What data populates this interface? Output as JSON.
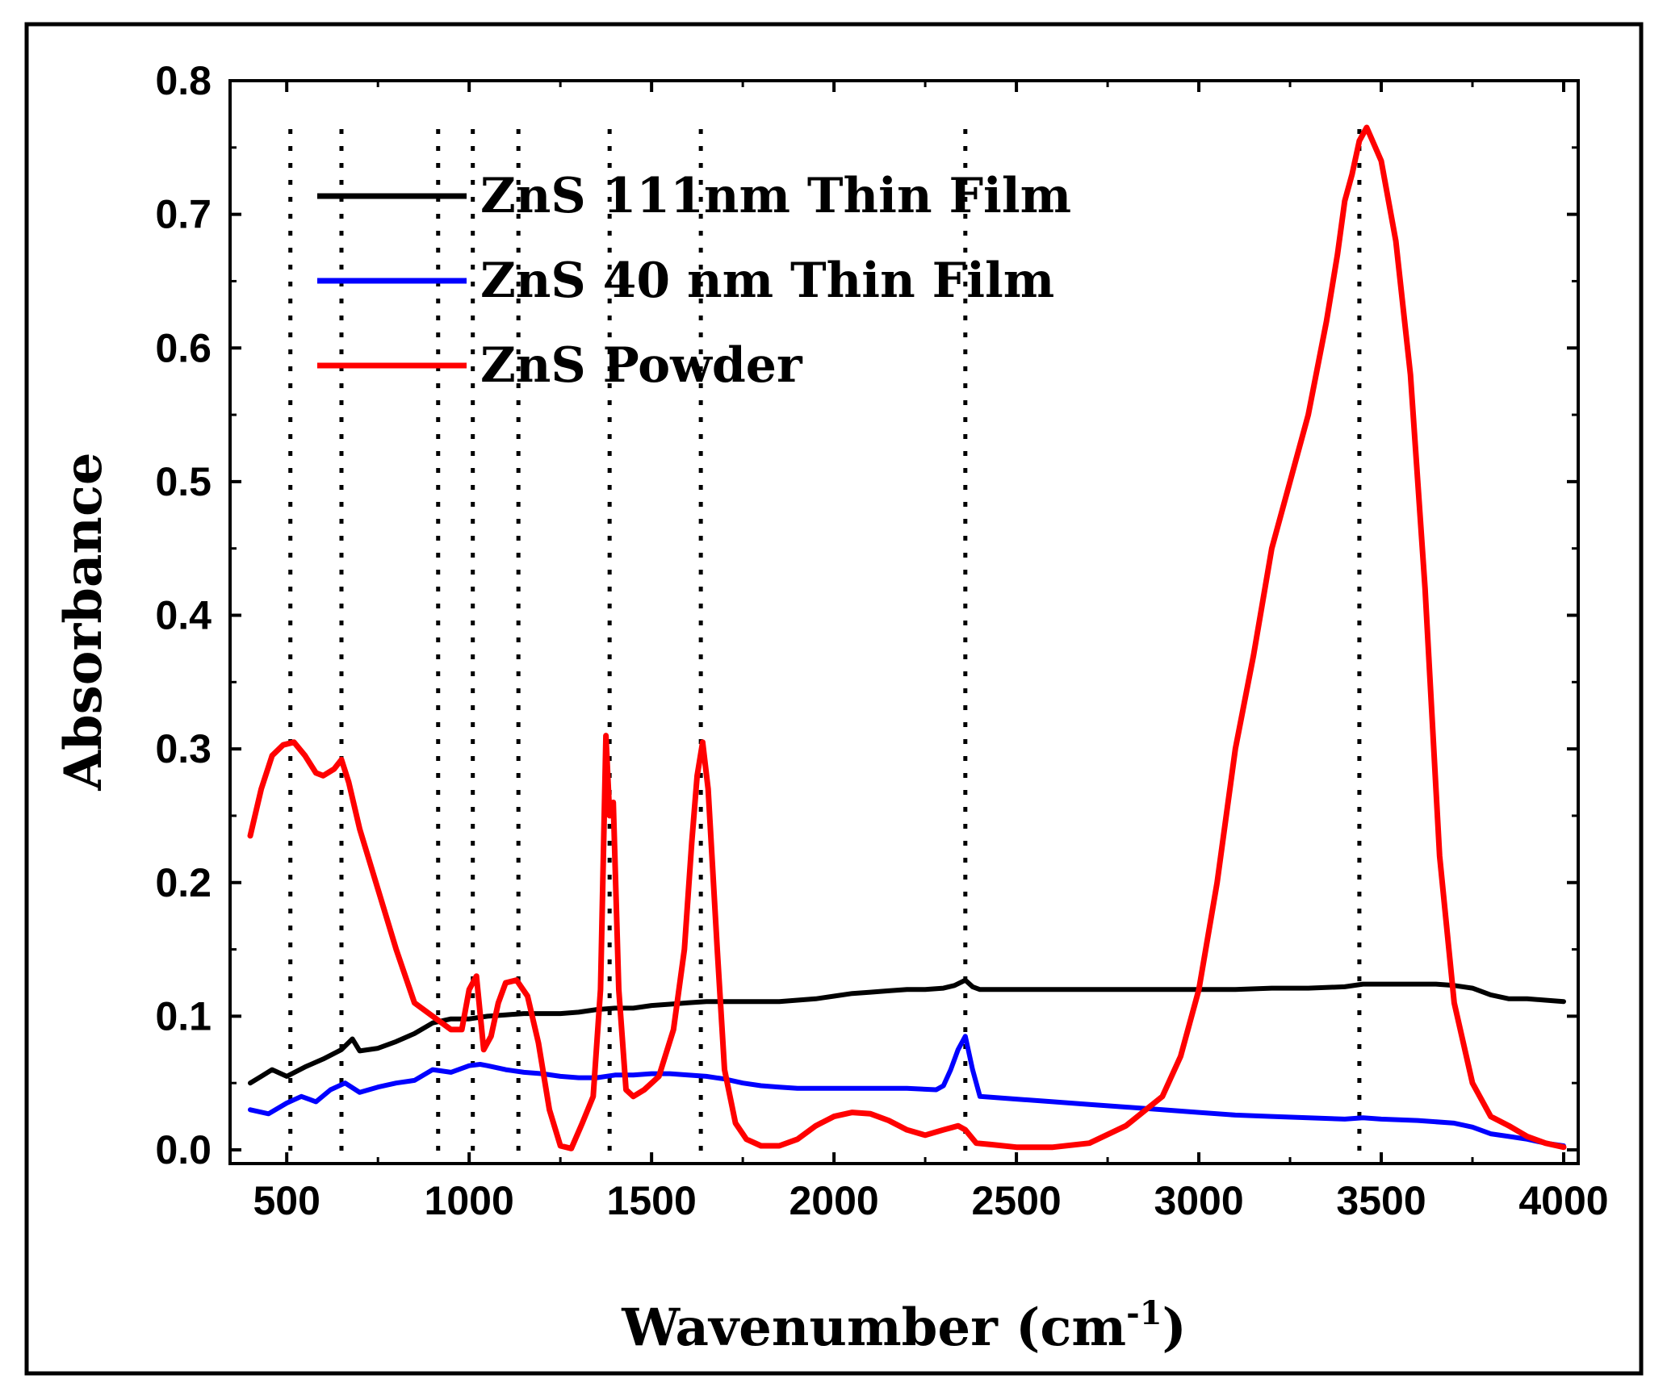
{
  "chart_data": {
    "type": "line",
    "xlabel": "Wavenumber (cm",
    "xlabel_sup": "-1",
    "xlabel_end": ")",
    "ylabel": "Absorbance",
    "xlim": [
      350,
      4050
    ],
    "ylim": [
      -0.01,
      0.8
    ],
    "x_ticks": [
      500,
      1000,
      1500,
      2000,
      2500,
      3000,
      3500,
      4000
    ],
    "x_tick_labels": [
      "500",
      "1000",
      "1500",
      "2000",
      "2500",
      "3000",
      "3500",
      "4000"
    ],
    "y_ticks": [
      0.0,
      0.1,
      0.2,
      0.3,
      0.4,
      0.5,
      0.6,
      0.7,
      0.8
    ],
    "y_tick_labels": [
      "0.0",
      "0.1",
      "0.2",
      "0.3",
      "0.4",
      "0.5",
      "0.6",
      "0.7",
      "0.8"
    ],
    "reference_lines_x": [
      510,
      650,
      915,
      1010,
      1135,
      1385,
      1635,
      2360,
      3440
    ],
    "legend_position": "top-left",
    "series": [
      {
        "name": "ZnS 111nm Thin Film",
        "color": "#000000",
        "x": [
          400,
          430,
          460,
          500,
          550,
          600,
          650,
          680,
          700,
          750,
          800,
          850,
          900,
          950,
          1000,
          1050,
          1100,
          1150,
          1200,
          1250,
          1300,
          1350,
          1400,
          1450,
          1500,
          1550,
          1600,
          1650,
          1700,
          1750,
          1800,
          1850,
          1900,
          1950,
          2000,
          2050,
          2100,
          2150,
          2200,
          2250,
          2300,
          2330,
          2360,
          2380,
          2400,
          2500,
          2600,
          2700,
          2800,
          2900,
          3000,
          3100,
          3200,
          3300,
          3400,
          3450,
          3500,
          3550,
          3600,
          3650,
          3700,
          3750,
          3800,
          3850,
          3900,
          3950,
          4000
        ],
        "y": [
          0.05,
          0.055,
          0.06,
          0.055,
          0.062,
          0.068,
          0.075,
          0.083,
          0.074,
          0.076,
          0.081,
          0.087,
          0.095,
          0.098,
          0.098,
          0.1,
          0.101,
          0.102,
          0.102,
          0.102,
          0.103,
          0.105,
          0.106,
          0.106,
          0.108,
          0.109,
          0.11,
          0.111,
          0.111,
          0.111,
          0.111,
          0.111,
          0.112,
          0.113,
          0.115,
          0.117,
          0.118,
          0.119,
          0.12,
          0.12,
          0.121,
          0.123,
          0.127,
          0.122,
          0.12,
          0.12,
          0.12,
          0.12,
          0.12,
          0.12,
          0.12,
          0.12,
          0.121,
          0.121,
          0.122,
          0.124,
          0.124,
          0.124,
          0.124,
          0.124,
          0.123,
          0.121,
          0.116,
          0.113,
          0.113,
          0.112,
          0.111
        ]
      },
      {
        "name": "ZnS 40 nm Thin Film",
        "color": "#0000ff",
        "x": [
          400,
          450,
          500,
          540,
          580,
          620,
          660,
          700,
          750,
          800,
          850,
          900,
          950,
          1000,
          1030,
          1050,
          1100,
          1150,
          1200,
          1250,
          1300,
          1350,
          1400,
          1450,
          1500,
          1550,
          1600,
          1650,
          1700,
          1750,
          1800,
          1850,
          1900,
          1950,
          2000,
          2100,
          2200,
          2280,
          2300,
          2320,
          2340,
          2360,
          2380,
          2400,
          2500,
          2600,
          2700,
          2800,
          2900,
          3000,
          3100,
          3200,
          3300,
          3400,
          3450,
          3500,
          3600,
          3700,
          3750,
          3800,
          3850,
          3900,
          3950,
          4000
        ],
        "y": [
          0.03,
          0.027,
          0.035,
          0.04,
          0.036,
          0.045,
          0.05,
          0.043,
          0.047,
          0.05,
          0.052,
          0.06,
          0.058,
          0.063,
          0.064,
          0.063,
          0.06,
          0.058,
          0.057,
          0.055,
          0.054,
          0.054,
          0.056,
          0.056,
          0.057,
          0.057,
          0.056,
          0.055,
          0.053,
          0.05,
          0.048,
          0.047,
          0.046,
          0.046,
          0.046,
          0.046,
          0.046,
          0.045,
          0.048,
          0.06,
          0.075,
          0.085,
          0.06,
          0.04,
          0.038,
          0.036,
          0.034,
          0.032,
          0.03,
          0.028,
          0.026,
          0.025,
          0.024,
          0.023,
          0.024,
          0.023,
          0.022,
          0.02,
          0.017,
          0.012,
          0.01,
          0.008,
          0.005,
          0.003
        ]
      },
      {
        "name": "ZnS Powder",
        "color": "#ff0000",
        "x": [
          400,
          430,
          460,
          490,
          520,
          550,
          580,
          600,
          630,
          650,
          670,
          700,
          750,
          800,
          850,
          900,
          950,
          980,
          1000,
          1020,
          1040,
          1060,
          1080,
          1100,
          1130,
          1160,
          1190,
          1220,
          1250,
          1280,
          1310,
          1340,
          1360,
          1375,
          1385,
          1395,
          1410,
          1430,
          1450,
          1480,
          1520,
          1560,
          1590,
          1610,
          1625,
          1640,
          1655,
          1680,
          1700,
          1730,
          1760,
          1800,
          1850,
          1900,
          1950,
          2000,
          2050,
          2100,
          2150,
          2200,
          2250,
          2300,
          2340,
          2360,
          2390,
          2430,
          2500,
          2600,
          2700,
          2800,
          2900,
          2950,
          3000,
          3050,
          3100,
          3150,
          3200,
          3250,
          3300,
          3350,
          3380,
          3400,
          3420,
          3440,
          3460,
          3500,
          3540,
          3580,
          3620,
          3660,
          3700,
          3750,
          3800,
          3850,
          3900,
          3950,
          4000
        ],
        "y": [
          0.235,
          0.27,
          0.295,
          0.303,
          0.305,
          0.295,
          0.282,
          0.28,
          0.285,
          0.292,
          0.275,
          0.24,
          0.195,
          0.15,
          0.11,
          0.1,
          0.09,
          0.09,
          0.12,
          0.13,
          0.075,
          0.085,
          0.11,
          0.125,
          0.127,
          0.115,
          0.08,
          0.03,
          0.003,
          0.001,
          0.02,
          0.04,
          0.12,
          0.31,
          0.25,
          0.26,
          0.12,
          0.045,
          0.04,
          0.045,
          0.055,
          0.09,
          0.15,
          0.23,
          0.28,
          0.305,
          0.27,
          0.15,
          0.06,
          0.02,
          0.008,
          0.003,
          0.003,
          0.008,
          0.018,
          0.025,
          0.028,
          0.027,
          0.022,
          0.015,
          0.011,
          0.015,
          0.018,
          0.015,
          0.005,
          0.004,
          0.002,
          0.002,
          0.005,
          0.018,
          0.04,
          0.07,
          0.12,
          0.2,
          0.3,
          0.37,
          0.45,
          0.5,
          0.55,
          0.62,
          0.67,
          0.71,
          0.73,
          0.755,
          0.765,
          0.74,
          0.68,
          0.58,
          0.42,
          0.22,
          0.11,
          0.05,
          0.025,
          0.018,
          0.01,
          0.005,
          0.002
        ]
      }
    ]
  }
}
